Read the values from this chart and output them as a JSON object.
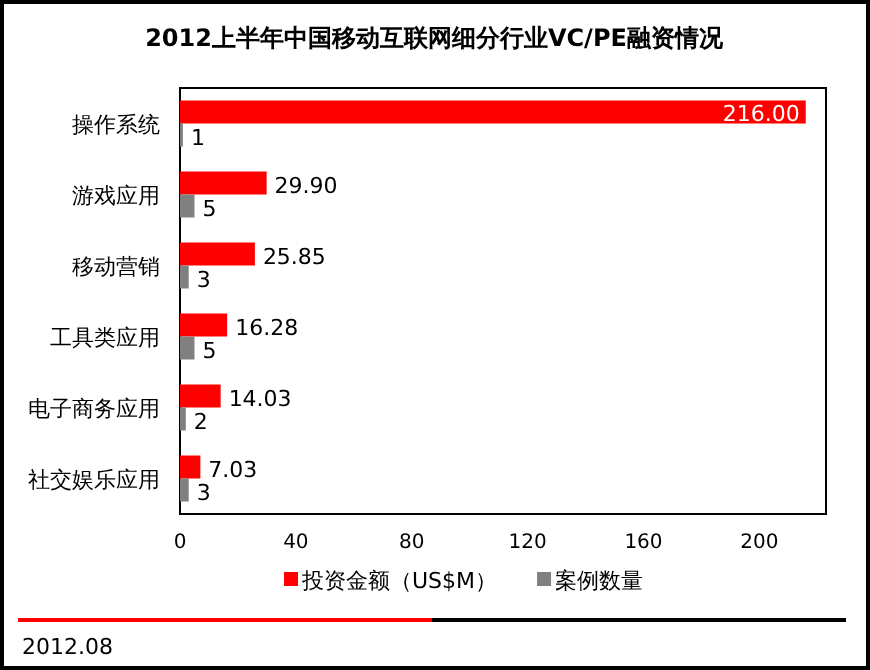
{
  "chart_data": {
    "type": "bar",
    "orientation": "horizontal",
    "title": "2012上半年中国移动互联网细分行业VC/PE融资情况",
    "categories": [
      "操作系统",
      "游戏应用",
      "移动营销",
      "工具类应用",
      "电子商务应用",
      "社交娱乐应用"
    ],
    "series": [
      {
        "name": "投资金额（US$M）",
        "color": "#ff0000",
        "values": [
          216.0,
          29.9,
          25.85,
          16.28,
          14.03,
          7.03
        ],
        "value_labels": [
          "216.00",
          "29.90",
          "25.85",
          "16.28",
          "14.03",
          "7.03"
        ]
      },
      {
        "name": "案例数量",
        "color": "#808080",
        "values": [
          1,
          5,
          3,
          5,
          2,
          3
        ],
        "value_labels": [
          "1",
          "5",
          "3",
          "5",
          "2",
          "3"
        ]
      }
    ],
    "xlim": [
      0,
      223
    ],
    "xticks": [
      0,
      40,
      80,
      120,
      160,
      200
    ],
    "grid": false,
    "legend": "bottom",
    "annotations": [
      "2012.08"
    ]
  }
}
